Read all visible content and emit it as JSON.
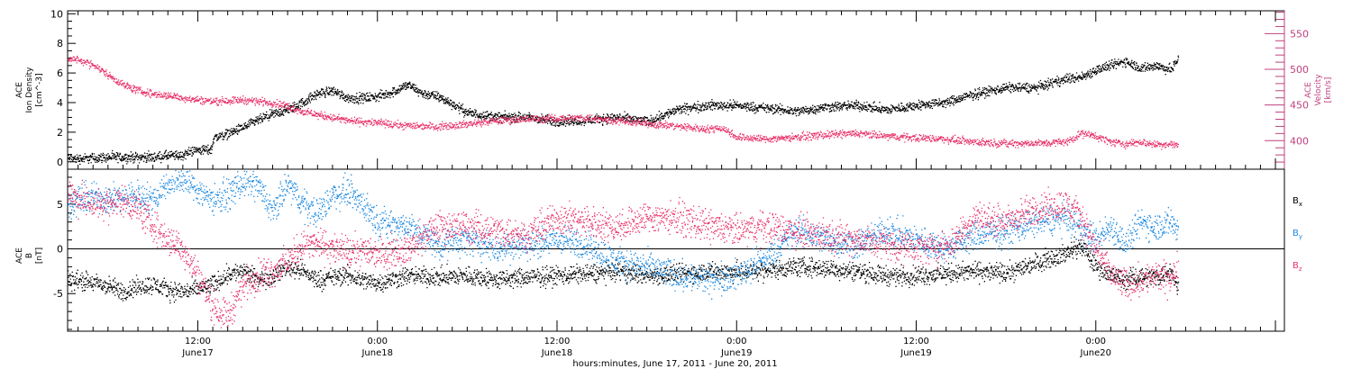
{
  "xlabel": "hours:minutes, June 17, 2011 - June 20, 2011",
  "time_ticks": [
    {
      "t": 12,
      "time": "12:00",
      "date": "June17"
    },
    {
      "t": 24,
      "time": "0:00",
      "date": "June18"
    },
    {
      "t": 36,
      "time": "12:00",
      "date": "June18"
    },
    {
      "t": 48,
      "time": "0:00",
      "date": "June19"
    },
    {
      "t": 60,
      "time": "12:00",
      "date": "June19"
    },
    {
      "t": 72,
      "time": "0:00",
      "date": "June20"
    }
  ],
  "colors": {
    "black": "#000000",
    "red": "#e8336b",
    "blue": "#1f8ae0",
    "magenta": "#c0407f"
  },
  "chart_data": [
    {
      "type": "scatter",
      "x_unit": "hours since June 17 00:00",
      "xlim": [
        3.3,
        84.6
      ],
      "left_axis": {
        "label_lines": [
          "ACE",
          "Ion Density",
          "[cm^-3]"
        ],
        "ylim": [
          -0.5,
          10.2
        ],
        "ticks": [
          0,
          2,
          4,
          6,
          8,
          10
        ]
      },
      "right_axis": {
        "label_lines": [
          "ACE",
          "Velocity",
          "[km/s]"
        ],
        "ylim": [
          360,
          582
        ],
        "ticks": [
          400,
          450,
          500,
          550
        ]
      },
      "series": [
        {
          "name": "Ion Density",
          "color": "#000000",
          "axis": "left",
          "x": [
            3.3,
            4,
            5,
            6,
            7,
            8,
            9,
            10,
            10.9,
            11.5,
            12,
            12.9,
            13,
            14,
            15,
            16,
            17,
            18,
            19,
            20,
            21,
            22,
            23,
            24,
            25,
            26,
            27,
            28,
            29,
            30,
            32,
            34,
            36,
            38,
            40,
            42,
            44,
            46,
            48,
            50,
            52,
            54,
            56,
            58,
            60,
            62,
            64,
            66,
            68,
            69,
            70,
            71,
            72,
            73,
            74,
            75,
            76,
            77,
            77.5
          ],
          "y": [
            0.2,
            0.2,
            0.25,
            0.3,
            0.3,
            0.3,
            0.3,
            0.4,
            0.4,
            0.7,
            0.8,
            0.8,
            1.6,
            1.9,
            2.3,
            2.8,
            3.2,
            3.5,
            4.0,
            4.6,
            4.8,
            4.3,
            4.3,
            4.4,
            4.7,
            5.2,
            4.6,
            4.4,
            3.9,
            3.3,
            3.0,
            3.0,
            2.7,
            2.8,
            3.0,
            2.7,
            3.5,
            3.8,
            3.8,
            3.6,
            3.4,
            3.7,
            3.8,
            3.5,
            3.8,
            4.0,
            4.6,
            5.0,
            5.0,
            5.3,
            5.6,
            5.7,
            6.2,
            6.5,
            6.8,
            6.3,
            6.5,
            6.2,
            7.0
          ]
        },
        {
          "name": "Velocity",
          "color": "#e8336b",
          "axis": "right",
          "x": [
            3.3,
            4,
            5,
            6,
            7,
            8,
            9,
            10,
            11,
            12,
            13,
            14,
            15,
            16,
            17,
            18,
            19,
            20,
            21,
            22,
            23,
            24,
            25,
            26,
            28,
            30,
            32,
            34,
            36,
            38,
            40,
            42,
            44,
            46,
            47,
            48,
            50,
            52,
            54,
            56,
            58,
            60,
            62,
            64,
            66,
            68,
            70,
            71,
            72,
            73,
            74,
            75,
            76,
            77,
            77.5
          ],
          "y": [
            515,
            513,
            506,
            492,
            478,
            470,
            465,
            463,
            460,
            457,
            455,
            456,
            457,
            455,
            453,
            448,
            440,
            436,
            432,
            428,
            426,
            425,
            422,
            421,
            420,
            423,
            428,
            430,
            431,
            432,
            428,
            424,
            420,
            416,
            418,
            405,
            402,
            405,
            408,
            410,
            406,
            404,
            402,
            398,
            396,
            396,
            398,
            410,
            406,
            398,
            395,
            398,
            394,
            395,
            393
          ]
        }
      ]
    },
    {
      "type": "scatter",
      "x_unit": "hours since June 17 00:00",
      "xlim": [
        3.3,
        84.6
      ],
      "label_lines": [
        "ACE",
        "B",
        "[nT]"
      ],
      "ylim": [
        -9.2,
        8.9
      ],
      "ticks": [
        -5,
        0,
        5
      ],
      "legend": [
        "B_x",
        "B_y",
        "B_z"
      ],
      "legend_placement": "right",
      "series": [
        {
          "name": "Bx",
          "color": "#000000",
          "x": [
            3.3,
            4,
            5,
            6,
            7,
            8,
            9,
            10,
            11,
            12,
            13,
            14,
            15,
            16,
            17,
            18,
            19,
            20,
            21,
            22,
            23,
            24,
            26,
            28,
            30,
            32,
            34,
            36,
            38,
            40,
            42,
            44,
            46,
            48,
            50,
            52,
            54,
            56,
            58,
            60,
            62,
            64,
            66,
            68,
            70,
            71,
            72,
            73,
            74,
            75,
            76,
            77,
            77.5
          ],
          "y": [
            -3.5,
            -3.5,
            -3.8,
            -4.2,
            -4.8,
            -4.2,
            -4.0,
            -4.6,
            -4.8,
            -4.5,
            -4.0,
            -2.8,
            -2.5,
            -3.5,
            -3.0,
            -2.0,
            -2.5,
            -3.5,
            -3.2,
            -3.0,
            -3.5,
            -3.8,
            -3.0,
            -3.2,
            -3.0,
            -3.5,
            -3.2,
            -3.0,
            -2.8,
            -2.5,
            -3.0,
            -2.8,
            -2.5,
            -2.6,
            -2.4,
            -2.0,
            -2.2,
            -2.5,
            -3.0,
            -3.0,
            -2.8,
            -2.5,
            -2.8,
            -1.5,
            -0.5,
            0.3,
            -2.0,
            -3.0,
            -3.5,
            -3.0,
            -3.2,
            -2.5,
            -4.5
          ]
        },
        {
          "name": "By",
          "color": "#1f8ae0",
          "x": [
            3.3,
            4,
            5,
            6,
            7,
            8,
            9,
            10,
            11,
            12,
            13,
            14,
            15,
            16,
            17,
            18,
            19,
            20,
            21,
            22,
            23,
            24,
            26,
            28,
            30,
            32,
            34,
            36,
            38,
            40,
            42,
            44,
            46,
            48,
            50,
            52,
            54,
            56,
            58,
            60,
            62,
            64,
            66,
            68,
            70,
            71,
            72,
            73,
            74,
            75,
            76,
            77,
            77.5
          ],
          "y": [
            5.0,
            5.5,
            5.8,
            5.6,
            5.6,
            6.0,
            5.5,
            7.5,
            7.8,
            6.5,
            5.5,
            6.0,
            7.5,
            7.0,
            4.0,
            7.2,
            5.0,
            4.0,
            6.0,
            6.5,
            5.0,
            3.0,
            2.5,
            0.5,
            1.0,
            0.0,
            0.5,
            1.0,
            0.5,
            -1.5,
            -2.0,
            -3.0,
            -3.5,
            -3.0,
            -1.0,
            2.0,
            1.0,
            0.5,
            2.0,
            1.0,
            0.0,
            1.5,
            2.0,
            3.0,
            3.5,
            2.0,
            1.0,
            2.5,
            0.5,
            3.0,
            2.5,
            3.0,
            2.0
          ]
        },
        {
          "name": "Bz",
          "color": "#e8336b",
          "x": [
            3.3,
            4,
            5,
            6,
            7,
            8,
            9,
            10,
            11,
            12,
            13,
            14,
            15,
            16,
            17,
            18,
            19,
            20,
            21,
            22,
            23,
            24,
            26,
            28,
            30,
            32,
            34,
            36,
            38,
            40,
            42,
            44,
            46,
            48,
            50,
            52,
            54,
            56,
            58,
            60,
            62,
            64,
            66,
            68,
            70,
            71,
            72,
            73,
            74,
            75,
            76,
            77,
            77.5
          ],
          "y": [
            6.5,
            5.5,
            5.0,
            5.0,
            5.5,
            4.5,
            2.5,
            1.0,
            0.0,
            -3.0,
            -6.5,
            -7.5,
            -4.0,
            -3.0,
            -2.5,
            -1.5,
            0.5,
            0.5,
            0.0,
            -0.5,
            -0.2,
            -0.5,
            0.0,
            2.5,
            2.5,
            2.0,
            1.5,
            3.5,
            3.0,
            2.5,
            3.5,
            3.5,
            2.5,
            2.0,
            2.5,
            2.0,
            1.5,
            1.0,
            0.5,
            0.0,
            0.2,
            3.5,
            3.0,
            4.5,
            5.0,
            3.5,
            0.0,
            -3.0,
            -4.0,
            -3.5,
            -3.0,
            -3.5,
            -2.0
          ]
        }
      ]
    }
  ]
}
